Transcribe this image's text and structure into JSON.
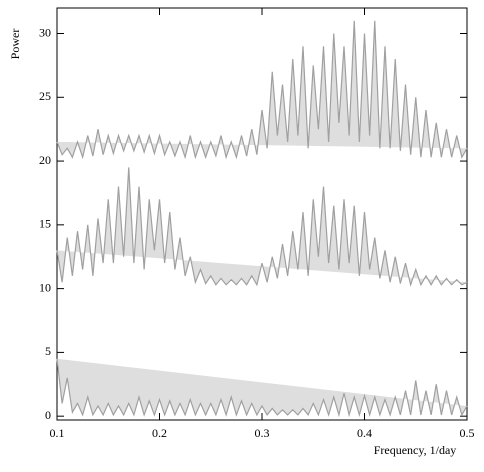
{
  "chart_data": {
    "type": "line",
    "x_label": "Frequency, 1/day",
    "y_label": "Power",
    "x": [
      0.1,
      0.105,
      0.11,
      0.115,
      0.12,
      0.125,
      0.13,
      0.135,
      0.14,
      0.145,
      0.15,
      0.155,
      0.16,
      0.165,
      0.17,
      0.175,
      0.18,
      0.185,
      0.19,
      0.195,
      0.2,
      0.205,
      0.21,
      0.215,
      0.22,
      0.225,
      0.23,
      0.235,
      0.24,
      0.245,
      0.25,
      0.255,
      0.26,
      0.265,
      0.27,
      0.275,
      0.28,
      0.285,
      0.29,
      0.295,
      0.3,
      0.305,
      0.31,
      0.315,
      0.32,
      0.325,
      0.33,
      0.335,
      0.34,
      0.345,
      0.35,
      0.355,
      0.36,
      0.365,
      0.37,
      0.375,
      0.38,
      0.385,
      0.39,
      0.395,
      0.4,
      0.405,
      0.41,
      0.415,
      0.42,
      0.425,
      0.43,
      0.435,
      0.44,
      0.445,
      0.45,
      0.455,
      0.46,
      0.465,
      0.47,
      0.475,
      0.48,
      0.485,
      0.49,
      0.495,
      0.5
    ],
    "series": [
      {
        "color": "#a0a0a0",
        "values": [
          21.5,
          20.5,
          21,
          20.3,
          21.5,
          20.3,
          22,
          20.4,
          22.5,
          20.5,
          22,
          20.6,
          22,
          20.8,
          22,
          20.8,
          22,
          20.7,
          22,
          20.6,
          22,
          20.5,
          21.5,
          20.4,
          21.5,
          20.3,
          22,
          20.3,
          21.5,
          20.3,
          21.5,
          20.4,
          22,
          20.3,
          21.5,
          20.3,
          22,
          20.4,
          22.5,
          20.5,
          24,
          21,
          27,
          22,
          26,
          21.5,
          28,
          22,
          29,
          21,
          27.5,
          22.5,
          29,
          21.5,
          30,
          23,
          29,
          22,
          31,
          21.5,
          30,
          22,
          31,
          21,
          29,
          21,
          28,
          20.8,
          26,
          20.5,
          25,
          20.3,
          24,
          20.3,
          23,
          20.3,
          22.5,
          20.3,
          22,
          20.3,
          21
        ]
      },
      {
        "color": "#a0a0a0",
        "values": [
          13,
          10.5,
          14,
          11,
          14.5,
          11.5,
          15,
          11,
          15.5,
          12,
          17,
          12,
          18,
          12.5,
          19.5,
          12,
          18,
          11.5,
          17,
          13,
          17,
          12,
          16,
          11.5,
          14,
          11,
          12.5,
          10.5,
          11.5,
          10.4,
          11,
          10.3,
          10.8,
          10.3,
          10.7,
          10.3,
          10.8,
          10.3,
          11,
          10.3,
          12,
          10.5,
          12.5,
          10.8,
          13.5,
          11,
          14.5,
          11.5,
          16,
          11,
          17,
          12.5,
          18,
          12,
          16.5,
          11.5,
          17,
          12,
          16.5,
          11,
          16,
          11.5,
          14,
          10.8,
          13,
          10.5,
          12.5,
          10.4,
          12,
          10.3,
          11.5,
          10.3,
          11,
          10.3,
          11,
          10.3,
          10.8,
          10.3,
          10.7,
          10.3,
          10.5
        ]
      },
      {
        "color": "#a0a0a0",
        "values": [
          4.5,
          1,
          3,
          0.3,
          1,
          0.1,
          1.5,
          0.1,
          0.8,
          0.1,
          1,
          0.1,
          0.8,
          0.1,
          1,
          0.1,
          1.5,
          0.1,
          1.2,
          0.1,
          1.3,
          0.1,
          1.2,
          0.1,
          1,
          0.1,
          1.3,
          0.1,
          1,
          0.1,
          1,
          0.1,
          1.3,
          0.1,
          1.5,
          0.1,
          1.2,
          0.1,
          1,
          0.1,
          0.8,
          0.1,
          0.6,
          0.1,
          0.5,
          0.1,
          0.5,
          0.1,
          0.6,
          0.1,
          1,
          0.1,
          1.3,
          0.1,
          1.5,
          0.1,
          1.8,
          0.1,
          1.5,
          0.1,
          1.6,
          0.1,
          1.5,
          0.1,
          1.3,
          0.1,
          1.5,
          0.1,
          2,
          0.1,
          2.8,
          0.1,
          2,
          0.1,
          2.5,
          0.1,
          2,
          0.1,
          1.5,
          0.1,
          0.8
        ]
      }
    ],
    "xlim": [
      0.1,
      0.5
    ],
    "xticks": [
      0.1,
      0.2,
      0.3,
      0.4,
      0.5
    ],
    "ylim": [
      -0.3,
      32
    ],
    "yticks": [
      0,
      5,
      10,
      15,
      20,
      25,
      30
    ]
  }
}
